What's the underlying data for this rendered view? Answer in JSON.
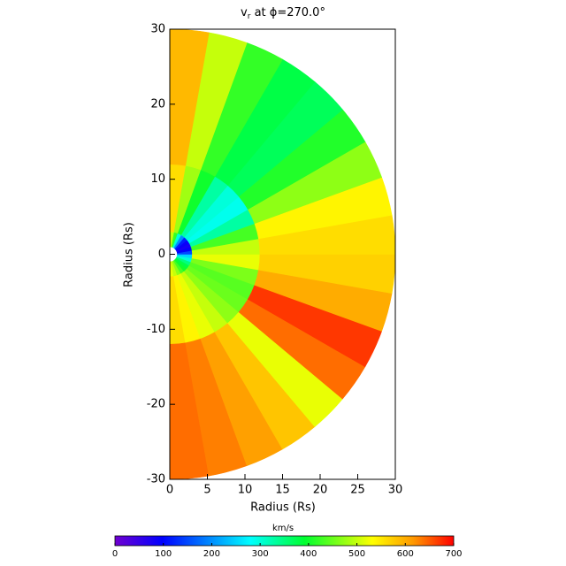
{
  "chart_data": {
    "type": "polar_heatmap",
    "title": "v",
    "title_sub": "r",
    "title_rest": " at ϕ=270.0°",
    "x_label": "Radius (Rs)",
    "y_label": "Radius (Rs)",
    "xlim": [
      0,
      30
    ],
    "ylim": [
      -30,
      30
    ],
    "xticks": [
      0,
      5,
      10,
      15,
      20,
      25,
      30
    ],
    "yticks": [
      -30,
      -20,
      -10,
      0,
      10,
      20,
      30
    ],
    "r_edges": [
      1,
      3,
      12,
      30
    ],
    "theta_edges": [
      -90,
      -80,
      -70,
      -60,
      -50,
      -40,
      -30,
      -20,
      -10,
      0,
      10,
      20,
      30,
      40,
      50,
      60,
      70,
      80,
      90
    ],
    "values": [
      [
        520,
        500,
        470,
        430,
        400,
        380,
        350,
        300,
        250,
        150,
        100,
        80,
        90,
        120,
        200,
        300,
        420,
        500
      ],
      [
        560,
        540,
        520,
        500,
        470,
        450,
        440,
        460,
        520,
        500,
        430,
        330,
        290,
        300,
        330,
        400,
        480,
        560
      ],
      [
        640,
        630,
        610,
        580,
        520,
        640,
        670,
        600,
        570,
        560,
        540,
        470,
        410,
        370,
        380,
        420,
        500,
        590
      ]
    ],
    "colorbar_label": "km/s",
    "clim": [
      0,
      700
    ],
    "cticks": [
      0,
      100,
      200,
      300,
      400,
      500,
      600,
      700
    ],
    "colormap": [
      [
        0,
        "#7000d0"
      ],
      [
        0.14,
        "#0000ff"
      ],
      [
        0.4,
        "#00ffff"
      ],
      [
        0.56,
        "#00ff30"
      ],
      [
        0.76,
        "#ffff00"
      ],
      [
        0.88,
        "#ff9900"
      ],
      [
        1,
        "#ff0000"
      ]
    ]
  }
}
